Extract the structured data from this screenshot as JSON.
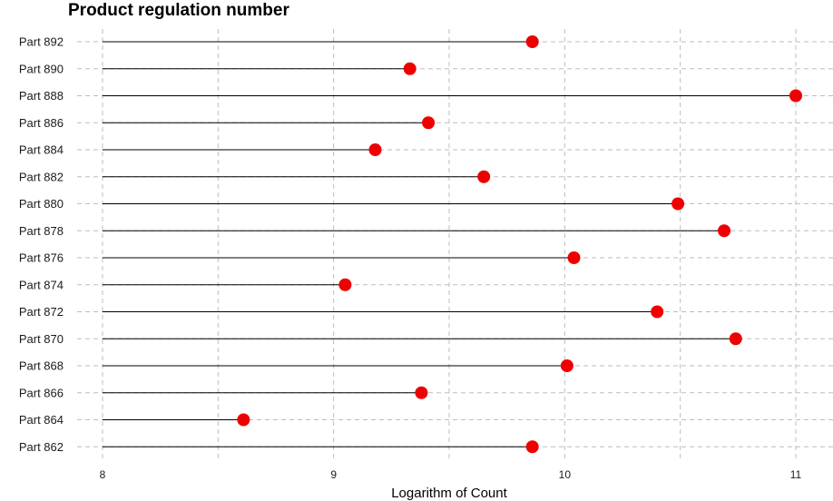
{
  "chart_data": {
    "type": "lollipop",
    "title": "Product regulation number",
    "xlabel": "Logarithm of Count",
    "ylabel": "",
    "xlim": [
      8,
      11
    ],
    "xticks": [
      "8",
      "9",
      "10",
      "11"
    ],
    "grid": true,
    "categories": [
      "Part 892",
      "Part 890",
      "Part 888",
      "Part 886",
      "Part 884",
      "Part 882",
      "Part 880",
      "Part 878",
      "Part 876",
      "Part 874",
      "Part 872",
      "Part 870",
      "Part 868",
      "Part 866",
      "Part 864",
      "Part 862"
    ],
    "values": [
      9.86,
      9.33,
      11.0,
      9.41,
      9.18,
      9.65,
      10.49,
      10.69,
      10.04,
      9.05,
      10.4,
      10.74,
      10.01,
      9.38,
      8.61,
      9.86
    ],
    "colors": {
      "point": "#ee0000",
      "stem": "#000000",
      "grid": "#bdbdbd"
    }
  }
}
